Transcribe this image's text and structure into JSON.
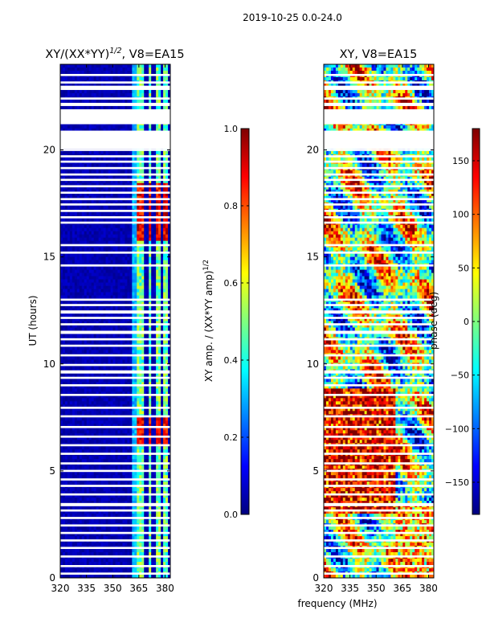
{
  "suptitle": "2019-10-25 0.0-24.0",
  "colors": {
    "jet": [
      "#00007f",
      "#0000ff",
      "#007fff",
      "#00ffff",
      "#7fff7f",
      "#ffff00",
      "#ff7f00",
      "#ff0000",
      "#7f0000"
    ]
  },
  "chart_data": [
    {
      "type": "heatmap",
      "title": "XY/(XX*YY)^1/2, V8=EA15",
      "title_base": "XY/(XX*YY)",
      "title_sup": "1/2",
      "title_rest": ", V8=EA15",
      "xlabel": "",
      "ylabel": "UT (hours)",
      "xlim": [
        320,
        383
      ],
      "ylim": [
        0,
        24
      ],
      "xticks": [
        320,
        335,
        350,
        365,
        380
      ],
      "yticks": [
        0,
        5,
        10,
        15,
        20
      ],
      "colorbar": {
        "label": "XY amp. / (XX*YY amp)^1/2",
        "label_base": "XY amp. / (XX*YY amp)",
        "label_sup": "1/2",
        "range": [
          0.0,
          1.0
        ],
        "ticks": [
          "0.0",
          "0.2",
          "0.4",
          "0.6",
          "0.8",
          "1.0"
        ],
        "tick_values": [
          0.0,
          0.2,
          0.4,
          0.6,
          0.8,
          1.0
        ]
      }
    },
    {
      "type": "heatmap",
      "title": "XY, V8=EA15",
      "xlabel": "frequency (MHz)",
      "ylabel": "",
      "xlim": [
        320,
        383
      ],
      "ylim": [
        0,
        24
      ],
      "xticks": [
        320,
        335,
        350,
        365,
        380
      ],
      "yticks": [
        0,
        5,
        10,
        15,
        20
      ],
      "colorbar": {
        "label": "phase (deg)",
        "range": [
          -180,
          180
        ],
        "ticks": [
          "150",
          "100",
          "50",
          "0",
          "−50",
          "−100",
          "−150"
        ],
        "tick_values": [
          150,
          100,
          50,
          0,
          -50,
          -100,
          -150
        ]
      }
    }
  ]
}
